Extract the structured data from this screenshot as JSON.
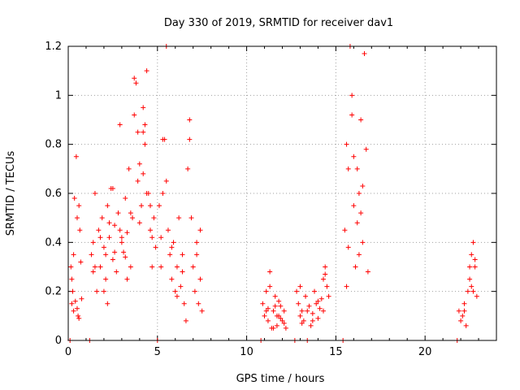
{
  "chart_data": {
    "type": "scatter",
    "title": "Day 330 of 2019, SRMTID for receiver dav1",
    "xlabel": "GPS time / hours",
    "ylabel": "SRMTID / TECUs",
    "xlim": [
      0,
      24
    ],
    "ylim": [
      0,
      1.2
    ],
    "xticks": [
      0,
      5,
      10,
      15,
      20
    ],
    "xtick_labels": [
      "0",
      "5",
      "10",
      "15",
      "20"
    ],
    "yticks": [
      0,
      0.2,
      0.4,
      0.6,
      0.8,
      1,
      1.2
    ],
    "ytick_labels": [
      "0",
      "0.2",
      "0.4",
      "0.6",
      "0.8",
      "1",
      "1.2"
    ],
    "grid": true,
    "marker": "+",
    "color": "#ff0000",
    "series": [
      {
        "name": "SRMTID",
        "points": [
          [
            0.1,
            0.0
          ],
          [
            0.15,
            0.3
          ],
          [
            0.2,
            0.25
          ],
          [
            0.25,
            0.2
          ],
          [
            0.3,
            0.35
          ],
          [
            0.35,
            0.58
          ],
          [
            0.4,
            0.16
          ],
          [
            0.45,
            0.75
          ],
          [
            0.5,
            0.13
          ],
          [
            0.55,
            0.1
          ],
          [
            0.6,
            0.55
          ],
          [
            0.65,
            0.45
          ],
          [
            0.7,
            0.32
          ],
          [
            0.75,
            0.17
          ],
          [
            0.2,
            0.15
          ],
          [
            0.3,
            0.12
          ],
          [
            0.5,
            0.5
          ],
          [
            0.6,
            0.09
          ],
          [
            1.2,
            0.0
          ],
          [
            1.3,
            0.35
          ],
          [
            1.4,
            0.4
          ],
          [
            1.5,
            0.6
          ],
          [
            1.6,
            0.2
          ],
          [
            1.7,
            0.45
          ],
          [
            1.8,
            0.3
          ],
          [
            1.9,
            0.5
          ],
          [
            2.0,
            0.38
          ],
          [
            2.1,
            0.25
          ],
          [
            2.2,
            0.55
          ],
          [
            2.3,
            0.42
          ],
          [
            2.4,
            0.62
          ],
          [
            2.5,
            0.33
          ],
          [
            2.6,
            0.47
          ],
          [
            2.7,
            0.28
          ],
          [
            2.8,
            0.52
          ],
          [
            2.9,
            0.88
          ],
          [
            3.0,
            0.4
          ],
          [
            3.1,
            0.36
          ],
          [
            3.2,
            0.58
          ],
          [
            3.3,
            0.44
          ],
          [
            3.4,
            0.7
          ],
          [
            3.5,
            0.3
          ],
          [
            3.6,
            0.5
          ],
          [
            3.7,
            0.92
          ],
          [
            3.8,
            1.05
          ],
          [
            3.9,
            0.65
          ],
          [
            4.0,
            0.48
          ],
          [
            4.1,
            0.55
          ],
          [
            4.2,
            0.95
          ],
          [
            4.3,
            0.8
          ],
          [
            4.4,
            1.1
          ],
          [
            4.5,
            0.6
          ],
          [
            4.6,
            0.45
          ],
          [
            4.7,
            0.3
          ],
          [
            4.8,
            0.5
          ],
          [
            4.9,
            0.38
          ],
          [
            1.5,
            0.3
          ],
          [
            1.8,
            0.42
          ],
          [
            2.1,
            0.35
          ],
          [
            2.3,
            0.48
          ],
          [
            2.6,
            0.36
          ],
          [
            2.9,
            0.45
          ],
          [
            3.2,
            0.34
          ],
          [
            3.5,
            0.52
          ],
          [
            3.9,
            0.85
          ],
          [
            4.0,
            0.72
          ],
          [
            4.2,
            0.68
          ],
          [
            4.3,
            0.88
          ],
          [
            4.4,
            0.6
          ],
          [
            4.6,
            0.55
          ],
          [
            3.7,
            1.07
          ],
          [
            4.2,
            0.85
          ],
          [
            2.5,
            0.62
          ],
          [
            3.0,
            0.42
          ],
          [
            1.4,
            0.28
          ],
          [
            2.0,
            0.2
          ],
          [
            2.2,
            0.15
          ],
          [
            3.3,
            0.25
          ],
          [
            4.7,
            0.42
          ],
          [
            5.0,
            0.0
          ],
          [
            5.1,
            0.55
          ],
          [
            5.2,
            0.3
          ],
          [
            5.3,
            0.6
          ],
          [
            5.4,
            0.82
          ],
          [
            5.5,
            1.2
          ],
          [
            5.6,
            0.45
          ],
          [
            5.7,
            0.35
          ],
          [
            5.8,
            0.25
          ],
          [
            5.9,
            0.4
          ],
          [
            6.0,
            0.2
          ],
          [
            6.1,
            0.3
          ],
          [
            6.2,
            0.5
          ],
          [
            6.3,
            0.22
          ],
          [
            6.4,
            0.35
          ],
          [
            6.5,
            0.15
          ],
          [
            6.6,
            0.08
          ],
          [
            6.7,
            0.7
          ],
          [
            6.8,
            0.9
          ],
          [
            6.9,
            0.5
          ],
          [
            7.0,
            0.3
          ],
          [
            7.1,
            0.2
          ],
          [
            7.2,
            0.4
          ],
          [
            7.3,
            0.15
          ],
          [
            7.4,
            0.25
          ],
          [
            7.5,
            0.12
          ],
          [
            5.2,
            0.42
          ],
          [
            5.5,
            0.65
          ],
          [
            5.8,
            0.38
          ],
          [
            6.1,
            0.18
          ],
          [
            6.4,
            0.28
          ],
          [
            6.8,
            0.82
          ],
          [
            7.2,
            0.35
          ],
          [
            7.4,
            0.45
          ],
          [
            5.3,
            0.82
          ],
          [
            10.8,
            0.0
          ],
          [
            10.9,
            0.15
          ],
          [
            11.0,
            0.1
          ],
          [
            11.1,
            0.2
          ],
          [
            11.2,
            0.08
          ],
          [
            11.3,
            0.28
          ],
          [
            11.4,
            0.05
          ],
          [
            11.5,
            0.12
          ],
          [
            11.6,
            0.18
          ],
          [
            11.7,
            0.06
          ],
          [
            11.8,
            0.1
          ],
          [
            11.9,
            0.14
          ],
          [
            12.0,
            0.08
          ],
          [
            12.1,
            0.12
          ],
          [
            12.2,
            0.05
          ],
          [
            11.3,
            0.22
          ],
          [
            11.6,
            0.14
          ],
          [
            11.9,
            0.09
          ],
          [
            11.1,
            0.12
          ],
          [
            11.5,
            0.05
          ],
          [
            11.8,
            0.16
          ],
          [
            11.2,
            0.13
          ],
          [
            11.7,
            0.1
          ],
          [
            12.1,
            0.07
          ],
          [
            12.7,
            0.0
          ],
          [
            12.8,
            0.2
          ],
          [
            12.9,
            0.15
          ],
          [
            13.0,
            0.1
          ],
          [
            13.1,
            0.12
          ],
          [
            13.2,
            0.08
          ],
          [
            13.3,
            0.18
          ],
          [
            13.4,
            0.0
          ],
          [
            13.5,
            0.14
          ],
          [
            13.6,
            0.06
          ],
          [
            13.7,
            0.11
          ],
          [
            13.8,
            0.2
          ],
          [
            13.9,
            0.15
          ],
          [
            14.0,
            0.09
          ],
          [
            14.1,
            0.13
          ],
          [
            14.2,
            0.17
          ],
          [
            14.3,
            0.25
          ],
          [
            14.4,
            0.3
          ],
          [
            14.5,
            0.22
          ],
          [
            14.6,
            0.18
          ],
          [
            13.1,
            0.07
          ],
          [
            13.4,
            0.12
          ],
          [
            13.7,
            0.08
          ],
          [
            14.0,
            0.16
          ],
          [
            14.3,
            0.12
          ],
          [
            13.0,
            0.22
          ],
          [
            14.4,
            0.27
          ],
          [
            15.4,
            0.0
          ],
          [
            15.5,
            0.45
          ],
          [
            15.6,
            0.8
          ],
          [
            15.7,
            0.38
          ],
          [
            15.8,
            1.2
          ],
          [
            15.9,
            1.0
          ],
          [
            16.0,
            0.55
          ],
          [
            16.1,
            0.3
          ],
          [
            16.2,
            0.7
          ],
          [
            16.3,
            0.6
          ],
          [
            16.4,
            0.9
          ],
          [
            16.5,
            0.4
          ],
          [
            16.6,
            1.17
          ],
          [
            16.7,
            0.78
          ],
          [
            16.8,
            0.28
          ],
          [
            15.6,
            0.22
          ],
          [
            15.9,
            0.92
          ],
          [
            16.2,
            0.48
          ],
          [
            16.4,
            0.52
          ],
          [
            15.7,
            0.7
          ],
          [
            16.0,
            0.75
          ],
          [
            16.3,
            0.35
          ],
          [
            16.5,
            0.63
          ],
          [
            21.8,
            0.0
          ],
          [
            21.9,
            0.12
          ],
          [
            22.0,
            0.08
          ],
          [
            22.1,
            0.1
          ],
          [
            22.2,
            0.15
          ],
          [
            22.3,
            0.06
          ],
          [
            22.4,
            0.2
          ],
          [
            22.5,
            0.25
          ],
          [
            22.6,
            0.35
          ],
          [
            22.7,
            0.4
          ],
          [
            22.8,
            0.3
          ],
          [
            22.9,
            0.18
          ],
          [
            22.6,
            0.22
          ],
          [
            22.8,
            0.33
          ],
          [
            22.2,
            0.12
          ],
          [
            22.7,
            0.2
          ],
          [
            22.5,
            0.3
          ]
        ]
      }
    ]
  }
}
